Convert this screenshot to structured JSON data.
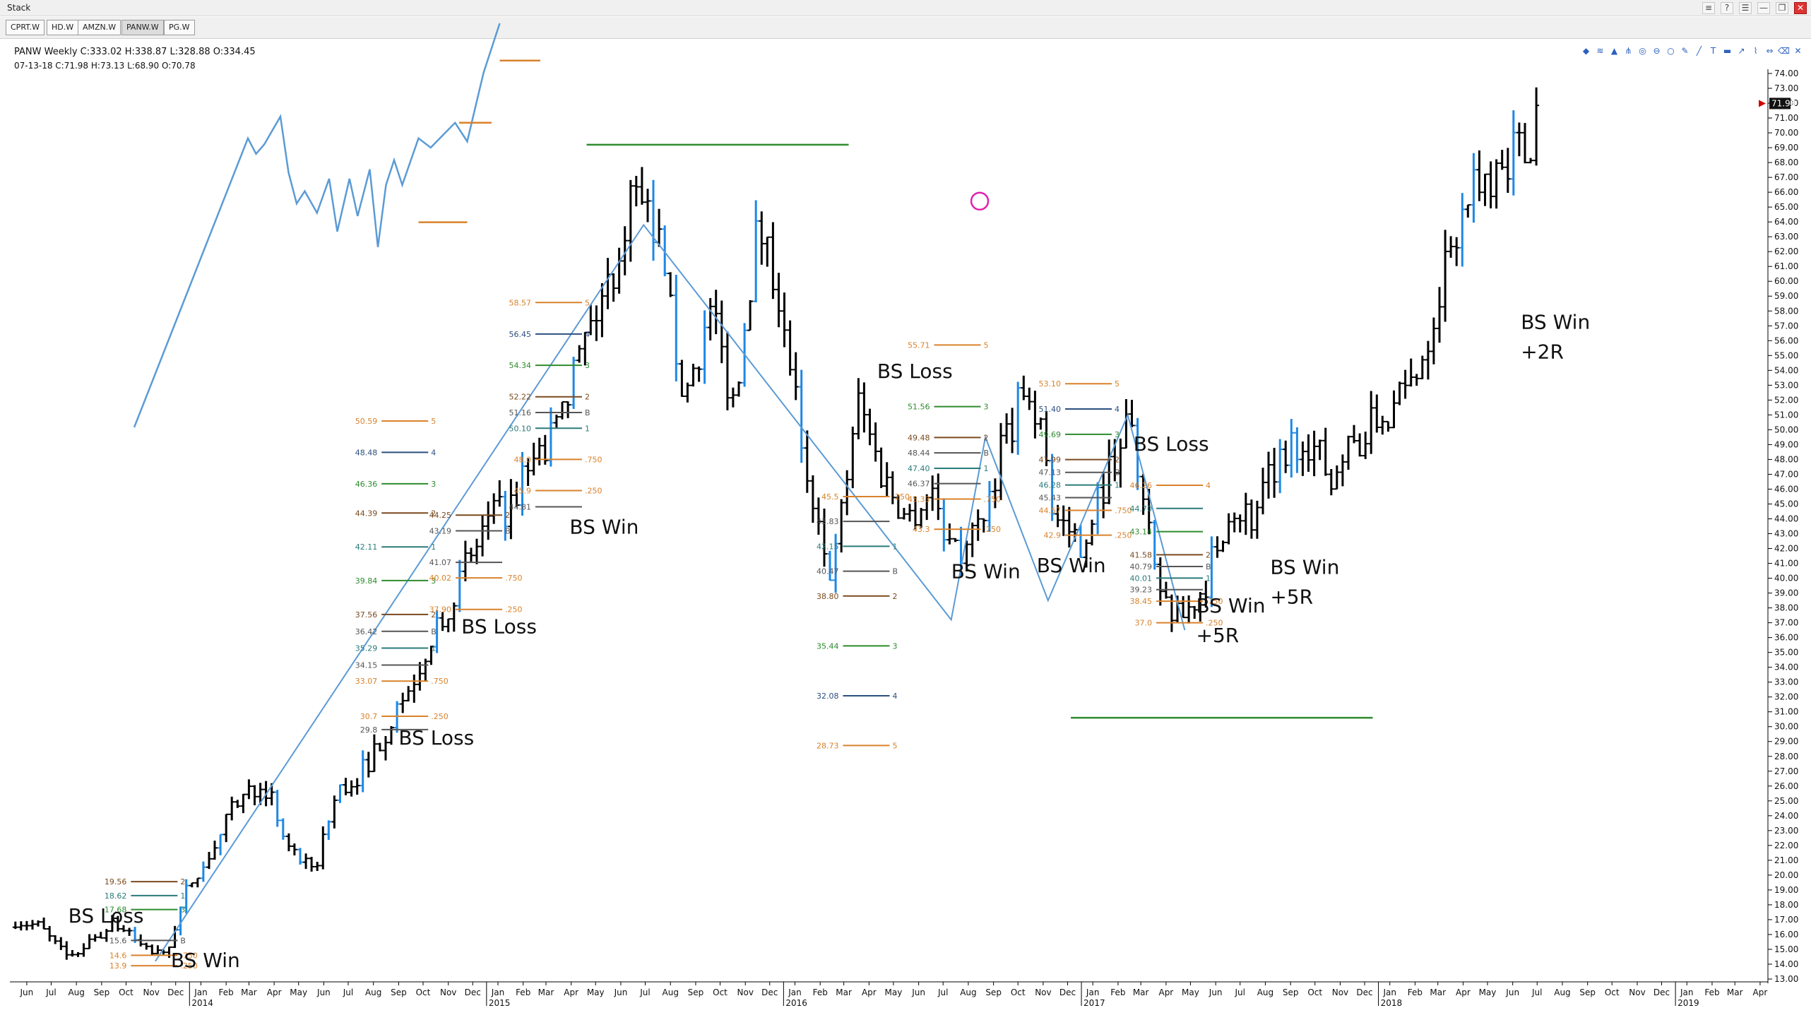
{
  "window": {
    "title": "Stack"
  },
  "window_buttons": [
    "≡",
    "?",
    "☰",
    "—",
    "❐",
    "✕"
  ],
  "tabs": [
    {
      "label": "CPRT.W",
      "active": false
    },
    {
      "label": "HD.W",
      "active": false
    },
    {
      "label": "AMZN.W",
      "active": false
    },
    {
      "label": "PANW.W",
      "active": true
    },
    {
      "label": "PG.W",
      "active": false
    }
  ],
  "header": {
    "symbol_info": "PANW Weekly C:333.02 H:338.87 L:328.88 O:334.45",
    "bar_info": "07-13-18 C:71.98 H:73.13 L:68.90 O:70.78"
  },
  "toolbar_icons": [
    "layers-icon",
    "wave-icon",
    "chart-icon",
    "pitchfork-icon",
    "circle-icon",
    "stop-icon",
    "ellipse-icon",
    "pencil-icon",
    "ruler-icon",
    "text-icon",
    "bar-icon",
    "trend-icon",
    "zigzag-icon",
    "arrows-icon",
    "delete-icon",
    "close-icon"
  ],
  "colors": {
    "bars": "#000000",
    "blue_bars": "#1e88e5",
    "wave_line": "#5b9bd5",
    "target_green": "#2e8b2e",
    "fib_orange": "#d9822b",
    "fib_brown": "#7a4a1e",
    "fib_teal": "#2a7a7a",
    "fib_navy": "#2b4f7f",
    "price_marker": "#d00000",
    "circle_marker": "#e020b0"
  },
  "chart_data": {
    "type": "ohlc",
    "title": "PANW Weekly",
    "ylim": [
      13.0,
      74.0
    ],
    "y_ticks": [
      "13.00",
      "14.00",
      "15.00",
      "16.00",
      "17.00",
      "18.00",
      "19.00",
      "20.00",
      "21.00",
      "22.00",
      "23.00",
      "24.00",
      "25.00",
      "26.00",
      "27.00",
      "28.00",
      "29.00",
      "30.00",
      "31.00",
      "32.00",
      "33.00",
      "34.00",
      "35.00",
      "36.00",
      "37.00",
      "38.00",
      "39.00",
      "40.00",
      "41.00",
      "42.00",
      "43.00",
      "44.00",
      "45.00",
      "46.00",
      "47.00",
      "48.00",
      "49.00",
      "50.00",
      "51.00",
      "52.00",
      "53.00",
      "54.00",
      "55.00",
      "56.00",
      "57.00",
      "58.00",
      "59.00",
      "60.00",
      "61.00",
      "62.00",
      "63.00",
      "64.00",
      "65.00",
      "66.00",
      "67.00",
      "68.00",
      "69.00",
      "70.00",
      "71.00",
      "72.00",
      "73.00",
      "74.00"
    ],
    "current_price": "71.98",
    "x_start": "2013-05-27",
    "x_end": "2019-04-22",
    "x_months": [
      [
        "2013-06-15",
        "Jun"
      ],
      [
        "2013-07-15",
        "Jul"
      ],
      [
        "2013-08-15",
        "Aug"
      ],
      [
        "2013-09-15",
        "Sep"
      ],
      [
        "2013-10-15",
        "Oct"
      ],
      [
        "2013-11-15",
        "Nov"
      ],
      [
        "2013-12-15",
        "Dec"
      ],
      [
        "2014-01-15",
        "Jan"
      ],
      [
        "2014-02-15",
        "Feb"
      ],
      [
        "2014-03-15",
        "Mar"
      ],
      [
        "2014-04-15",
        "Apr"
      ],
      [
        "2014-05-15",
        "May"
      ],
      [
        "2014-06-15",
        "Jun"
      ],
      [
        "2014-07-15",
        "Jul"
      ],
      [
        "2014-08-15",
        "Aug"
      ],
      [
        "2014-09-15",
        "Sep"
      ],
      [
        "2014-10-15",
        "Oct"
      ],
      [
        "2014-11-15",
        "Nov"
      ],
      [
        "2014-12-15",
        "Dec"
      ],
      [
        "2015-01-15",
        "Jan"
      ],
      [
        "2015-02-15",
        "Feb"
      ],
      [
        "2015-03-15",
        "Mar"
      ],
      [
        "2015-04-15",
        "Apr"
      ],
      [
        "2015-05-15",
        "May"
      ],
      [
        "2015-06-15",
        "Jun"
      ],
      [
        "2015-07-15",
        "Jul"
      ],
      [
        "2015-08-15",
        "Aug"
      ],
      [
        "2015-09-15",
        "Sep"
      ],
      [
        "2015-10-15",
        "Oct"
      ],
      [
        "2015-11-15",
        "Nov"
      ],
      [
        "2015-12-15",
        "Dec"
      ],
      [
        "2016-01-15",
        "Jan"
      ],
      [
        "2016-02-15",
        "Feb"
      ],
      [
        "2016-03-15",
        "Mar"
      ],
      [
        "2016-04-15",
        "Apr"
      ],
      [
        "2016-05-15",
        "May"
      ],
      [
        "2016-06-15",
        "Jun"
      ],
      [
        "2016-07-15",
        "Jul"
      ],
      [
        "2016-08-15",
        "Aug"
      ],
      [
        "2016-09-15",
        "Sep"
      ],
      [
        "2016-10-15",
        "Oct"
      ],
      [
        "2016-11-15",
        "Nov"
      ],
      [
        "2016-12-15",
        "Dec"
      ],
      [
        "2017-01-15",
        "Jan"
      ],
      [
        "2017-02-15",
        "Feb"
      ],
      [
        "2017-03-15",
        "Mar"
      ],
      [
        "2017-04-15",
        "Apr"
      ],
      [
        "2017-05-15",
        "May"
      ],
      [
        "2017-06-15",
        "Jun"
      ],
      [
        "2017-07-15",
        "Jul"
      ],
      [
        "2017-08-15",
        "Aug"
      ],
      [
        "2017-09-15",
        "Sep"
      ],
      [
        "2017-10-15",
        "Oct"
      ],
      [
        "2017-11-15",
        "Nov"
      ],
      [
        "2017-12-15",
        "Dec"
      ],
      [
        "2018-01-15",
        "Jan"
      ],
      [
        "2018-02-15",
        "Feb"
      ],
      [
        "2018-03-15",
        "Mar"
      ],
      [
        "2018-04-15",
        "Apr"
      ],
      [
        "2018-05-15",
        "May"
      ],
      [
        "2018-06-15",
        "Jun"
      ],
      [
        "2018-07-15",
        "Jul"
      ],
      [
        "2018-08-15",
        "Aug"
      ],
      [
        "2018-09-15",
        "Sep"
      ],
      [
        "2018-10-15",
        "Oct"
      ],
      [
        "2018-11-15",
        "Nov"
      ],
      [
        "2018-12-15",
        "Dec"
      ],
      [
        "2019-01-15",
        "Jan"
      ],
      [
        "2019-02-15",
        "Feb"
      ],
      [
        "2019-03-15",
        "Mar"
      ],
      [
        "2019-04-15",
        "Apr"
      ]
    ],
    "x_years": [
      [
        "2014-01-01",
        "2014"
      ],
      [
        "2015-01-01",
        "2015"
      ],
      [
        "2016-01-01",
        "2016"
      ],
      [
        "2017-01-01",
        "2017"
      ],
      [
        "2018-01-01",
        "2018"
      ],
      [
        "2019-01-01",
        "2019"
      ]
    ],
    "price_path": [
      [
        "2013-06-01",
        17.0
      ],
      [
        "2013-07-01",
        16.5
      ],
      [
        "2013-08-01",
        14.5
      ],
      [
        "2013-09-01",
        15.5
      ],
      [
        "2013-10-01",
        16.8
      ],
      [
        "2013-11-01",
        15.2
      ],
      [
        "2013-12-01",
        14.5
      ],
      [
        "2014-01-01",
        19.5
      ],
      [
        "2014-02-01",
        22.0
      ],
      [
        "2014-03-01",
        25.0
      ],
      [
        "2014-04-01",
        26.5
      ],
      [
        "2014-05-01",
        22.0
      ],
      [
        "2014-06-01",
        20.0
      ],
      [
        "2014-07-01",
        25.5
      ],
      [
        "2014-08-01",
        27.0
      ],
      [
        "2014-09-01",
        30.0
      ],
      [
        "2014-10-01",
        33.0
      ],
      [
        "2014-11-01",
        37.0
      ],
      [
        "2014-12-01",
        40.0
      ],
      [
        "2015-01-01",
        43.5
      ],
      [
        "2015-02-01",
        45.0
      ],
      [
        "2015-03-01",
        48.0
      ],
      [
        "2015-04-01",
        50.0
      ],
      [
        "2015-05-01",
        56.0
      ],
      [
        "2015-06-01",
        60.0
      ],
      [
        "2015-07-01",
        66.0
      ],
      [
        "2015-08-01",
        62.0
      ],
      [
        "2015-09-01",
        52.0
      ],
      [
        "2015-10-01",
        58.0
      ],
      [
        "2015-11-01",
        52.0
      ],
      [
        "2015-12-01",
        64.0
      ],
      [
        "2016-01-01",
        58.0
      ],
      [
        "2016-02-01",
        45.0
      ],
      [
        "2016-03-01",
        40.0
      ],
      [
        "2016-04-01",
        52.0
      ],
      [
        "2016-05-01",
        47.0
      ],
      [
        "2016-06-01",
        44.0
      ],
      [
        "2016-07-01",
        46.0
      ],
      [
        "2016-08-01",
        41.0
      ],
      [
        "2016-09-01",
        44.0
      ],
      [
        "2016-10-01",
        50.0
      ],
      [
        "2016-11-01",
        53.0
      ],
      [
        "2016-12-01",
        44.0
      ],
      [
        "2017-01-01",
        42.5
      ],
      [
        "2017-02-01",
        47.0
      ],
      [
        "2017-03-01",
        51.0
      ],
      [
        "2017-04-01",
        40.0
      ],
      [
        "2017-05-01",
        37.0
      ],
      [
        "2017-06-01",
        39.5
      ],
      [
        "2017-07-01",
        45.0
      ],
      [
        "2017-08-01",
        44.0
      ],
      [
        "2017-09-01",
        48.0
      ],
      [
        "2017-10-01",
        50.0
      ],
      [
        "2017-11-01",
        47.0
      ],
      [
        "2017-12-01",
        49.0
      ],
      [
        "2018-01-01",
        50.5
      ],
      [
        "2018-02-01",
        52.0
      ],
      [
        "2018-03-01",
        56.0
      ],
      [
        "2018-04-01",
        63.0
      ],
      [
        "2018-05-01",
        66.0
      ],
      [
        "2018-06-01",
        69.0
      ],
      [
        "2018-07-01",
        68.5
      ],
      [
        "2018-07-16",
        71.98
      ]
    ],
    "wave_line": [
      [
        "2013-11-20",
        14.2
      ],
      [
        "2015-07-13",
        63.8
      ],
      [
        "2016-07-25",
        37.2
      ],
      [
        "2016-09-05",
        49.5
      ],
      [
        "2016-11-21",
        38.5
      ],
      [
        "2017-02-27",
        51.0
      ],
      [
        "2017-05-08",
        36.5
      ]
    ],
    "inset_line": {
      "points": [
        [
          0.0,
          0.0
        ],
        [
          0.28,
          0.93
        ],
        [
          0.3,
          0.88
        ],
        [
          0.32,
          0.91
        ],
        [
          0.36,
          1.0
        ],
        [
          0.38,
          0.82
        ],
        [
          0.4,
          0.72
        ],
        [
          0.42,
          0.76
        ],
        [
          0.45,
          0.69
        ],
        [
          0.48,
          0.8
        ],
        [
          0.5,
          0.63
        ],
        [
          0.53,
          0.8
        ],
        [
          0.55,
          0.68
        ],
        [
          0.58,
          0.83
        ],
        [
          0.6,
          0.58
        ],
        [
          0.62,
          0.78
        ],
        [
          0.64,
          0.86
        ],
        [
          0.66,
          0.78
        ],
        [
          0.7,
          0.93
        ],
        [
          0.73,
          0.9
        ],
        [
          0.76,
          0.94
        ],
        [
          0.79,
          0.98
        ],
        [
          0.82,
          0.92
        ],
        [
          0.86,
          1.14
        ],
        [
          0.9,
          1.3
        ]
      ],
      "levels": [
        [
          0.7,
          0.82,
          0.66
        ],
        [
          0.8,
          0.88,
          0.98
        ],
        [
          0.9,
          1.0,
          1.18
        ]
      ]
    },
    "targets": [
      {
        "from": "2015-05-04",
        "to": "2016-03-21",
        "y": 69.2
      },
      {
        "from": "2016-12-19",
        "to": "2017-12-25",
        "y": 30.6
      }
    ],
    "annotations": [
      {
        "text": "BS Loss",
        "date": "2013-08-05",
        "y": 16.8
      },
      {
        "text": "BS Win",
        "date": "2013-12-09",
        "y": 13.8
      },
      {
        "text": "BS Loss",
        "date": "2014-09-15",
        "y": 28.8
      },
      {
        "text": "BS Loss",
        "date": "2014-12-01",
        "y": 36.3
      },
      {
        "text": "BS Win",
        "date": "2015-04-13",
        "y": 43.0
      },
      {
        "text": "BS Loss",
        "date": "2016-04-25",
        "y": 53.5
      },
      {
        "text": "BS Win",
        "date": "2016-07-25",
        "y": 40.0
      },
      {
        "text": "BS Win",
        "date": "2016-11-07",
        "y": 40.4
      },
      {
        "text": "BS Loss",
        "date": "2017-03-06",
        "y": 48.6
      },
      {
        "text": "BS Win",
        "date": "2017-05-22",
        "y": 37.7
      },
      {
        "text": "+5R",
        "date": "2017-05-22",
        "y": 35.7
      },
      {
        "text": "BS Win",
        "date": "2017-08-21",
        "y": 40.3
      },
      {
        "text": "+5R",
        "date": "2017-08-21",
        "y": 38.3
      },
      {
        "text": "BS Win",
        "date": "2018-06-25",
        "y": 56.8
      },
      {
        "text": "+2R",
        "date": "2018-06-25",
        "y": 54.8
      }
    ],
    "fib_sets": [
      {
        "date": "2013-10-21",
        "levels": [
          [
            "19.56",
            "2",
            "brown"
          ],
          [
            "18.62",
            "1",
            "teal"
          ],
          [
            "17.68",
            "3",
            "green"
          ],
          [
            "15.6",
            "B",
            "gray"
          ],
          [
            "14.6",
            ".750",
            "orange"
          ],
          [
            "13.9",
            ".250",
            "orange"
          ]
        ]
      },
      {
        "date": "2014-08-25",
        "levels": [
          [
            "44.39",
            "2",
            "brown"
          ],
          [
            "42.11",
            "1",
            "teal"
          ],
          [
            "39.84",
            "3",
            "green"
          ],
          [
            "37.56",
            "2",
            "brown"
          ],
          [
            "36.42",
            "B",
            "gray"
          ],
          [
            "35.29",
            "1",
            "teal"
          ],
          [
            "34.15",
            "",
            "gray"
          ],
          [
            "33.07",
            ".750",
            "orange"
          ],
          [
            "30.7",
            ".250",
            "orange"
          ],
          [
            "29.8",
            "",
            "gray"
          ]
        ]
      },
      {
        "date": "2014-08-25",
        "levels": [
          [
            "50.59",
            "5",
            "orange"
          ],
          [
            "48.48",
            "4",
            "navy"
          ],
          [
            "46.36",
            "3",
            "green"
          ]
        ]
      },
      {
        "date": "2014-11-24",
        "levels": [
          [
            "44.25",
            "2",
            "brown"
          ],
          [
            "43.19",
            "B",
            "gray"
          ],
          [
            "41.07",
            "",
            "gray"
          ],
          [
            "40.02",
            ".750",
            "orange"
          ],
          [
            "37.90",
            ".250",
            "orange"
          ]
        ]
      },
      {
        "date": "2015-03-02",
        "levels": [
          [
            "58.57",
            "5",
            "orange"
          ],
          [
            "56.45",
            "4",
            "navy"
          ],
          [
            "54.34",
            "3",
            "green"
          ],
          [
            "52.22",
            "2",
            "brown"
          ],
          [
            "51.16",
            "B",
            "gray"
          ],
          [
            "50.10",
            "1",
            "teal"
          ],
          [
            "48.0",
            ".750",
            "orange"
          ],
          [
            "45.9",
            ".250",
            "orange"
          ],
          [
            "44.81",
            "",
            "gray"
          ]
        ]
      },
      {
        "date": "2016-03-14",
        "levels": [
          [
            "45.5",
            ".250",
            "orange"
          ],
          [
            "43.83",
            "",
            "gray"
          ],
          [
            "42.15",
            "1",
            "teal"
          ],
          [
            "40.47",
            "B",
            "gray"
          ],
          [
            "38.80",
            "2",
            "brown"
          ],
          [
            "35.44",
            "3",
            "green"
          ],
          [
            "32.08",
            "4",
            "navy"
          ],
          [
            "28.73",
            "5",
            "orange"
          ]
        ]
      },
      {
        "date": "2016-07-04",
        "levels": [
          [
            "55.71",
            "5",
            "orange"
          ],
          [
            "51.56",
            "3",
            "green"
          ],
          [
            "49.48",
            "2",
            "brown"
          ],
          [
            "48.44",
            "B",
            "gray"
          ],
          [
            "47.40",
            "1",
            "teal"
          ],
          [
            "46.37",
            "",
            "gray"
          ],
          [
            "45.33",
            ".750",
            "orange"
          ],
          [
            "43.3",
            ".250",
            "orange"
          ]
        ]
      },
      {
        "date": "2016-12-12",
        "levels": [
          [
            "53.10",
            "5",
            "orange"
          ],
          [
            "51.40",
            "4",
            "navy"
          ],
          [
            "49.69",
            "3",
            "green"
          ],
          [
            "47.99",
            "2",
            "brown"
          ],
          [
            "47.13",
            "B",
            "gray"
          ],
          [
            "46.28",
            "1",
            "teal"
          ],
          [
            "45.43",
            "",
            "gray"
          ],
          [
            "44.57",
            ".750",
            "orange"
          ],
          [
            "42.9",
            ".250",
            "orange"
          ]
        ]
      },
      {
        "date": "2017-04-03",
        "levels": [
          [
            "46.26",
            "4",
            "orange"
          ],
          [
            "44.70",
            "",
            "teal"
          ],
          [
            "43.14",
            "",
            "green"
          ],
          [
            "41.58",
            "2",
            "brown"
          ],
          [
            "40.79",
            "B",
            "gray"
          ],
          [
            "40.01",
            "1",
            "teal"
          ],
          [
            "39.23",
            "",
            "gray"
          ],
          [
            "38.45",
            ".750",
            "orange"
          ],
          [
            "37.0",
            ".250",
            "orange"
          ]
        ]
      }
    ]
  }
}
